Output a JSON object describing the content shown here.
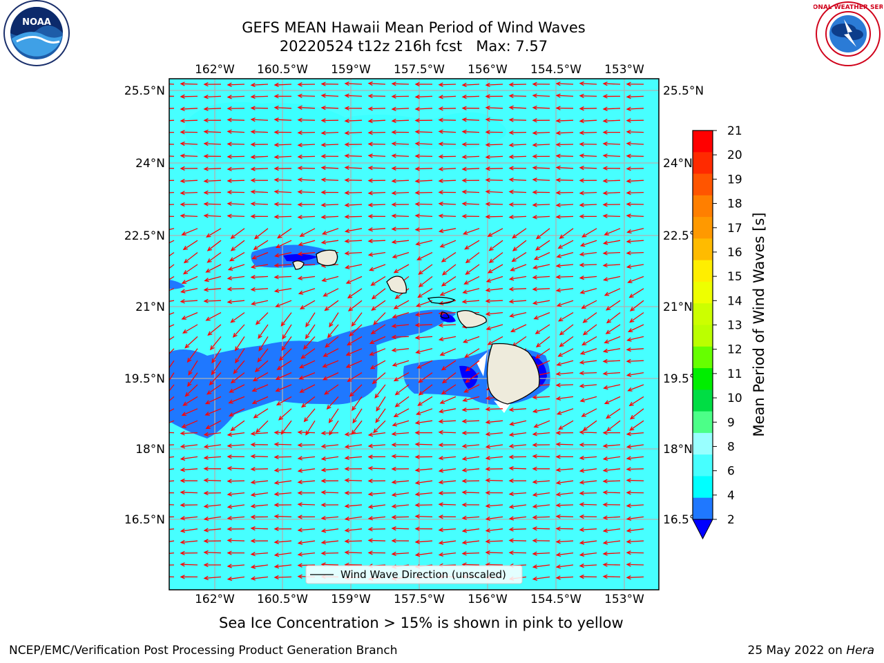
{
  "title": {
    "line1": "GEFS MEAN Hawaii Mean Period of Wind Waves",
    "line2": "20220524 t12z 216h fcst   Max: 7.57"
  },
  "logos": {
    "left": "noaa-logo",
    "right": "national-weather-service-logo",
    "noaa_text": "NOAA",
    "nws_text": "NATIONAL WEATHER SERVICE"
  },
  "map": {
    "lon_ticks": [
      "162°W",
      "160.5°W",
      "159°W",
      "157.5°W",
      "156°W",
      "154.5°W",
      "153°W"
    ],
    "lat_ticks": [
      "25.5°N",
      "24°N",
      "22.5°N",
      "21°N",
      "19.5°N",
      "18°N",
      "16.5°N"
    ],
    "legend": "Wind Wave Direction (unscaled)",
    "colors": {
      "background_field": "#47ffff",
      "low_field": "#1f78ff",
      "lowest_field": "#0000ff",
      "arrow": "#ff0000",
      "land": "#eeebdc",
      "grid": "#b0b0b0"
    }
  },
  "colorbar": {
    "label": "Mean Period of Wind Waves [s]",
    "ticks": [
      "21",
      "20",
      "19",
      "18",
      "17",
      "16",
      "15",
      "14",
      "13",
      "12",
      "11",
      "10",
      "9",
      "8",
      "6",
      "4",
      "2"
    ],
    "colors_top_to_bottom": [
      "#ff0000",
      "#ff2a00",
      "#ff5500",
      "#ff7f00",
      "#ff9900",
      "#ffbb00",
      "#ffee00",
      "#eeff00",
      "#ccff00",
      "#bbff00",
      "#66ff00",
      "#00ee00",
      "#00dd44",
      "#4cff88",
      "#99ffff",
      "#47ffff",
      "#00ffff",
      "#1f78ff"
    ],
    "extend_color": "#0000ff"
  },
  "notes": {
    "sea_ice": "Sea Ice Concentration > 15% is shown in pink to yellow"
  },
  "footer": {
    "left": "NCEP/EMC/Verification Post Processing Product Generation Branch",
    "right_prefix": "25 May 2022 on ",
    "right_host": "Hera"
  }
}
